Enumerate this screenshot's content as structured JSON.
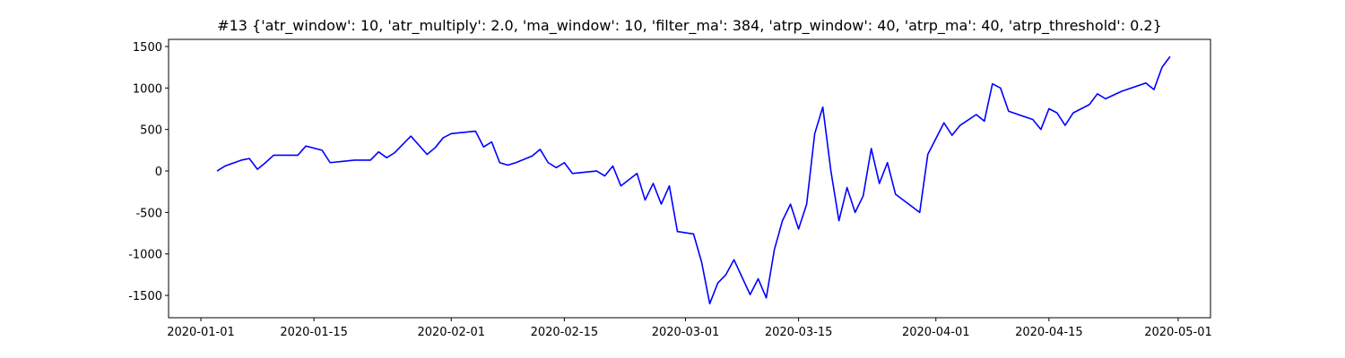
{
  "chart_data": {
    "type": "line",
    "title": "#13 {'atr_window': 10, 'atr_multiply': 2.0, 'ma_window': 10, 'filter_ma': 384, 'atrp_window': 40, 'atrp_ma': 40, 'atrp_threshold': 0.2}",
    "color": "#0000ff",
    "x": [
      "2020-01-03",
      "2020-01-04",
      "2020-01-06",
      "2020-01-07",
      "2020-01-08",
      "2020-01-09",
      "2020-01-10",
      "2020-01-13",
      "2020-01-14",
      "2020-01-16",
      "2020-01-17",
      "2020-01-20",
      "2020-01-22",
      "2020-01-23",
      "2020-01-24",
      "2020-01-25",
      "2020-01-27",
      "2020-01-29",
      "2020-01-30",
      "2020-01-31",
      "2020-02-01",
      "2020-02-04",
      "2020-02-05",
      "2020-02-06",
      "2020-02-07",
      "2020-02-08",
      "2020-02-09",
      "2020-02-11",
      "2020-02-12",
      "2020-02-13",
      "2020-02-14",
      "2020-02-15",
      "2020-02-16",
      "2020-02-19",
      "2020-02-20",
      "2020-02-21",
      "2020-02-22",
      "2020-02-24",
      "2020-02-25",
      "2020-02-26",
      "2020-02-27",
      "2020-02-28",
      "2020-02-29",
      "2020-03-02",
      "2020-03-03",
      "2020-03-04",
      "2020-03-05",
      "2020-03-06",
      "2020-03-07",
      "2020-03-09",
      "2020-03-10",
      "2020-03-11",
      "2020-03-12",
      "2020-03-13",
      "2020-03-14",
      "2020-03-15",
      "2020-03-16",
      "2020-03-17",
      "2020-03-18",
      "2020-03-19",
      "2020-03-20",
      "2020-03-21",
      "2020-03-22",
      "2020-03-23",
      "2020-03-24",
      "2020-03-25",
      "2020-03-26",
      "2020-03-27",
      "2020-03-30",
      "2020-03-31",
      "2020-04-02",
      "2020-04-03",
      "2020-04-04",
      "2020-04-06",
      "2020-04-07",
      "2020-04-08",
      "2020-04-09",
      "2020-04-10",
      "2020-04-13",
      "2020-04-14",
      "2020-04-15",
      "2020-04-16",
      "2020-04-17",
      "2020-04-18",
      "2020-04-19",
      "2020-04-20",
      "2020-04-21",
      "2020-04-22",
      "2020-04-24",
      "2020-04-27",
      "2020-04-28",
      "2020-04-29",
      "2020-04-30"
    ],
    "values": [
      0,
      60,
      130,
      150,
      20,
      100,
      190,
      190,
      300,
      250,
      100,
      130,
      130,
      230,
      160,
      220,
      420,
      200,
      280,
      400,
      450,
      480,
      290,
      350,
      100,
      70,
      100,
      180,
      260,
      100,
      40,
      100,
      -30,
      0,
      -60,
      60,
      -180,
      -30,
      -350,
      -150,
      -400,
      -180,
      -730,
      -760,
      -1100,
      -1600,
      -1350,
      -1250,
      -1070,
      -1490,
      -1300,
      -1530,
      -950,
      -600,
      -400,
      -700,
      -400,
      450,
      770,
      0,
      -600,
      -200,
      -500,
      -300,
      270,
      -150,
      100,
      -280,
      -500,
      200,
      580,
      430,
      550,
      680,
      600,
      1050,
      1000,
      720,
      620,
      500,
      750,
      700,
      550,
      700,
      750,
      800,
      930,
      870,
      960,
      1060,
      980,
      1250,
      1380
    ],
    "xlim": [
      "2019-12-28",
      "2020-05-05"
    ],
    "xticks": [
      "2020-01-01",
      "2020-01-15",
      "2020-02-01",
      "2020-02-15",
      "2020-03-01",
      "2020-03-15",
      "2020-04-01",
      "2020-04-15",
      "2020-05-01"
    ],
    "ylim": [
      -1769,
      1586
    ],
    "yticks": [
      -1500,
      -1000,
      -500,
      0,
      500,
      1000,
      1500
    ]
  }
}
